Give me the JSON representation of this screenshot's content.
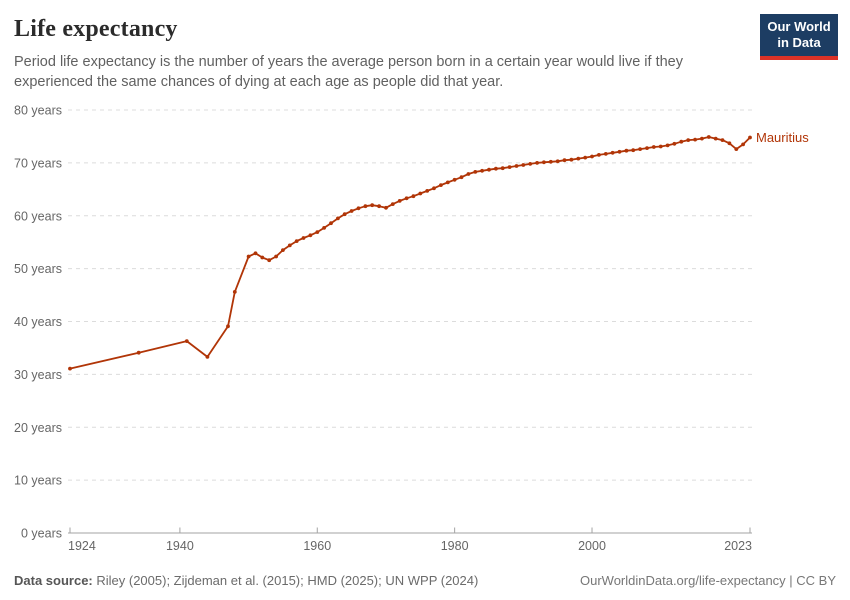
{
  "header": {
    "title": "Life expectancy",
    "subtitle": "Period life expectancy is the number of years the average person born in a certain year would live if they experienced the same chances of dying at each age as people did that year."
  },
  "logo": {
    "line1": "Our World",
    "line2": "in Data"
  },
  "footer": {
    "source_label": "Data source:",
    "source_text": " Riley (2005); Zijdeman et al. (2015); HMD (2025); UN WPP (2024)",
    "link_text": "OurWorldinData.org/life-expectancy | CC BY"
  },
  "colors": {
    "line": "#b13507",
    "entity_label": "#b13507",
    "gridline": "#dcdcdc",
    "axis": "#a3a3a3",
    "axis_label": "#666666",
    "logo_bg": "#1d3d63",
    "logo_accent": "#dc3226"
  },
  "chart_data": {
    "type": "line",
    "title": "Life expectancy",
    "entity": "Mauritius",
    "ylabel": "years",
    "xlabel": "",
    "x_range": [
      1924,
      2023
    ],
    "y_range": [
      0,
      80
    ],
    "grid": "horizontal-dashed",
    "legend": "direct-line-label",
    "y_ticks": [
      {
        "value": 0,
        "label": "0 years"
      },
      {
        "value": 10,
        "label": "10 years"
      },
      {
        "value": 20,
        "label": "20 years"
      },
      {
        "value": 30,
        "label": "30 years"
      },
      {
        "value": 40,
        "label": "40 years"
      },
      {
        "value": 50,
        "label": "50 years"
      },
      {
        "value": 60,
        "label": "60 years"
      },
      {
        "value": 70,
        "label": "70 years"
      },
      {
        "value": 80,
        "label": "80 years"
      }
    ],
    "x_ticks": [
      {
        "value": 1924,
        "label": "1924"
      },
      {
        "value": 1940,
        "label": "1940"
      },
      {
        "value": 1960,
        "label": "1960"
      },
      {
        "value": 1980,
        "label": "1980"
      },
      {
        "value": 2000,
        "label": "2000"
      },
      {
        "value": 2023,
        "label": "2023"
      }
    ],
    "series": [
      {
        "name": "Mauritius",
        "points": [
          [
            1924,
            31.1
          ],
          [
            1934,
            34.1
          ],
          [
            1941,
            36.3
          ],
          [
            1944,
            33.3
          ],
          [
            1947,
            39.1
          ],
          [
            1948,
            45.6
          ],
          [
            1950,
            52.3
          ],
          [
            1951,
            52.9
          ],
          [
            1952,
            52.1
          ],
          [
            1953,
            51.6
          ],
          [
            1954,
            52.3
          ],
          [
            1955,
            53.5
          ],
          [
            1956,
            54.4
          ],
          [
            1957,
            55.2
          ],
          [
            1958,
            55.8
          ],
          [
            1959,
            56.3
          ],
          [
            1960,
            56.9
          ],
          [
            1961,
            57.7
          ],
          [
            1962,
            58.6
          ],
          [
            1963,
            59.5
          ],
          [
            1964,
            60.3
          ],
          [
            1965,
            60.9
          ],
          [
            1966,
            61.4
          ],
          [
            1967,
            61.8
          ],
          [
            1968,
            62.0
          ],
          [
            1969,
            61.8
          ],
          [
            1970,
            61.5
          ],
          [
            1971,
            62.2
          ],
          [
            1972,
            62.8
          ],
          [
            1973,
            63.3
          ],
          [
            1974,
            63.7
          ],
          [
            1975,
            64.2
          ],
          [
            1976,
            64.7
          ],
          [
            1977,
            65.2
          ],
          [
            1978,
            65.8
          ],
          [
            1979,
            66.3
          ],
          [
            1980,
            66.8
          ],
          [
            1981,
            67.3
          ],
          [
            1982,
            67.9
          ],
          [
            1983,
            68.3
          ],
          [
            1984,
            68.5
          ],
          [
            1985,
            68.7
          ],
          [
            1986,
            68.9
          ],
          [
            1987,
            69.0
          ],
          [
            1988,
            69.2
          ],
          [
            1989,
            69.4
          ],
          [
            1990,
            69.6
          ],
          [
            1991,
            69.8
          ],
          [
            1992,
            70.0
          ],
          [
            1993,
            70.1
          ],
          [
            1994,
            70.2
          ],
          [
            1995,
            70.3
          ],
          [
            1996,
            70.5
          ],
          [
            1997,
            70.6
          ],
          [
            1998,
            70.8
          ],
          [
            1999,
            71.0
          ],
          [
            2000,
            71.2
          ],
          [
            2001,
            71.5
          ],
          [
            2002,
            71.7
          ],
          [
            2003,
            71.9
          ],
          [
            2004,
            72.1
          ],
          [
            2005,
            72.3
          ],
          [
            2006,
            72.4
          ],
          [
            2007,
            72.6
          ],
          [
            2008,
            72.8
          ],
          [
            2009,
            73.0
          ],
          [
            2010,
            73.1
          ],
          [
            2011,
            73.3
          ],
          [
            2012,
            73.6
          ],
          [
            2013,
            74.0
          ],
          [
            2014,
            74.3
          ],
          [
            2015,
            74.4
          ],
          [
            2016,
            74.6
          ],
          [
            2017,
            74.9
          ],
          [
            2018,
            74.6
          ],
          [
            2019,
            74.3
          ],
          [
            2020,
            73.7
          ],
          [
            2021,
            72.6
          ],
          [
            2022,
            73.5
          ],
          [
            2023,
            74.8
          ]
        ]
      }
    ]
  }
}
